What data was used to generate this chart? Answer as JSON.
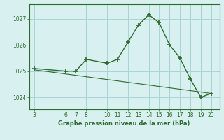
{
  "x": [
    3,
    6,
    7,
    8,
    10,
    11,
    12,
    13,
    14,
    15,
    16,
    17,
    18,
    19,
    20
  ],
  "y": [
    1025.1,
    1025.0,
    1025.0,
    1025.45,
    1025.3,
    1025.45,
    1026.1,
    1026.75,
    1027.15,
    1026.85,
    1026.0,
    1025.5,
    1024.7,
    1024.0,
    1024.15
  ],
  "trend_x": [
    3,
    20
  ],
  "trend_y": [
    1025.05,
    1024.15
  ],
  "line_color": "#2d6a2d",
  "bg_color": "#d8f0f0",
  "grid_color": "#aad4d4",
  "xlabel": "Graphe pression niveau de la mer (hPa)",
  "xticks": [
    3,
    6,
    7,
    8,
    10,
    11,
    12,
    13,
    14,
    15,
    16,
    17,
    18,
    19,
    20
  ],
  "yticks": [
    1024,
    1025,
    1026,
    1027
  ],
  "ylim": [
    1023.55,
    1027.55
  ],
  "xlim": [
    2.5,
    20.8
  ]
}
